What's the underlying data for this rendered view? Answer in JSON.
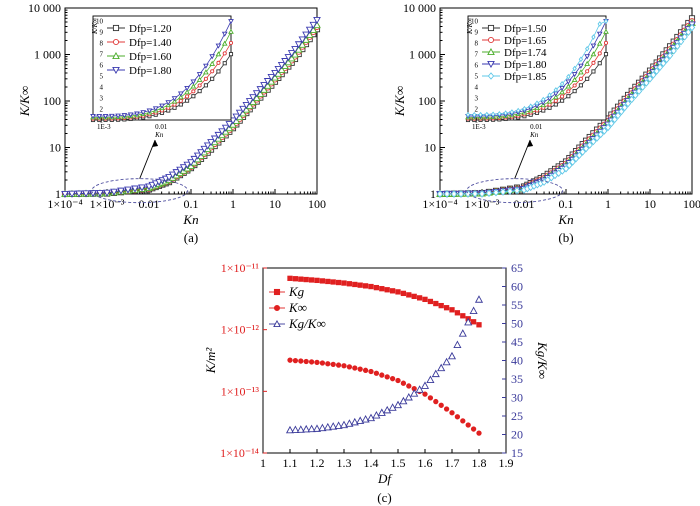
{
  "chart_data": [
    {
      "type": "line",
      "panel_label": "(a)",
      "xlabel": "Kn",
      "ylabel": "K/K∞",
      "xscale": "log",
      "yscale": "log",
      "xlim": [
        0.0001,
        100
      ],
      "ylim": [
        1,
        10000
      ],
      "xticks": [
        "1×10⁻⁴",
        "1×10⁻³",
        "0.01",
        "0.1",
        "1",
        "10",
        "100"
      ],
      "yticks": [
        "1",
        "10",
        "100",
        "1 000",
        "10 000"
      ],
      "x": [
        0.0001,
        0.001,
        0.01,
        0.03,
        0.1,
        0.3,
        1,
        3,
        10,
        30,
        100
      ],
      "series": [
        {
          "name": "Dfp=1.20",
          "color": "#333333",
          "marker": "square",
          "values": [
            1.0,
            1.02,
            1.25,
            1.8,
            3.6,
            9,
            26,
            80,
            260,
            800,
            3500
          ]
        },
        {
          "name": "Dfp=1.40",
          "color": "#e03a3a",
          "marker": "circle",
          "values": [
            1.0,
            1.03,
            1.3,
            1.9,
            3.8,
            10,
            28,
            88,
            290,
            900,
            3900
          ]
        },
        {
          "name": "Dfp=1.60",
          "color": "#4cae2c",
          "marker": "triangle-up",
          "values": [
            1.0,
            1.04,
            1.35,
            2.0,
            4.0,
            11,
            31,
            95,
            320,
            1000,
            4300
          ]
        },
        {
          "name": "Dfp=1.80",
          "color": "#3a3ab0",
          "marker": "triangle-down",
          "values": [
            1.0,
            1.06,
            1.45,
            2.3,
            4.8,
            13,
            38,
            120,
            400,
            1300,
            5500
          ]
        }
      ],
      "inset": {
        "xlabel": "Kn",
        "ylabel": "K/K∞",
        "xticks": [
          "1E-3",
          "0.01"
        ],
        "yticks": [
          "1",
          "2",
          "3",
          "4",
          "5",
          "6",
          "7",
          "8",
          "9",
          "10"
        ]
      }
    },
    {
      "type": "line",
      "panel_label": "(b)",
      "xlabel": "Kn",
      "ylabel": "K/K∞",
      "xscale": "log",
      "yscale": "log",
      "xlim": [
        0.0001,
        100
      ],
      "ylim": [
        1,
        10000
      ],
      "xticks": [
        "1×10⁻⁴",
        "1×10⁻³",
        "0.01",
        "0.1",
        "1",
        "10",
        "100"
      ],
      "yticks": [
        "1",
        "10",
        "100",
        "1 000",
        "10 000"
      ],
      "x": [
        0.0001,
        0.001,
        0.01,
        0.03,
        0.1,
        0.3,
        1,
        3,
        10,
        30,
        100
      ],
      "series": [
        {
          "name": "Dfp=1.50",
          "color": "#333333",
          "marker": "square",
          "values": [
            1.0,
            1.05,
            1.45,
            2.4,
            5.0,
            14,
            42,
            135,
            450,
            1500,
            6000
          ]
        },
        {
          "name": "Dfp=1.65",
          "color": "#e03a3a",
          "marker": "circle",
          "values": [
            1.0,
            1.04,
            1.38,
            2.2,
            4.5,
            12.5,
            37,
            120,
            400,
            1300,
            5200
          ]
        },
        {
          "name": "Dfp=1.74",
          "color": "#4cae2c",
          "marker": "triangle-up",
          "values": [
            1.0,
            1.03,
            1.33,
            2.05,
            4.2,
            11.5,
            34,
            110,
            370,
            1200,
            4800
          ]
        },
        {
          "name": "Dfp=1.80",
          "color": "#3a3ab0",
          "marker": "triangle-down",
          "values": [
            1.0,
            1.02,
            1.28,
            1.95,
            3.9,
            10.5,
            31,
            100,
            340,
            1100,
            4400
          ]
        },
        {
          "name": "Dfp=1.85",
          "color": "#5fc8e8",
          "marker": "diamond",
          "values": [
            1.0,
            1.01,
            1.22,
            1.8,
            3.5,
            9.5,
            27,
            88,
            300,
            950,
            3800
          ]
        }
      ],
      "inset": {
        "xlabel": "Kn",
        "ylabel": "K/K∞",
        "xticks": [
          "1E-3",
          "0.01"
        ],
        "yticks": [
          "1",
          "2",
          "3",
          "4",
          "5",
          "6",
          "7",
          "8",
          "9",
          "10"
        ]
      }
    },
    {
      "type": "scatter",
      "panel_label": "(c)",
      "xlabel": "Df",
      "ylabel_left": "K/m²",
      "ylabel_right": "Kg/K∞",
      "xlim": [
        1.0,
        1.9
      ],
      "xticks": [
        "1",
        "1.1",
        "1.2",
        "1.3",
        "1.4",
        "1.5",
        "1.6",
        "1.7",
        "1.8",
        "1.9"
      ],
      "ylim_left": [
        1e-14,
        1e-11
      ],
      "yticks_left": [
        "1×10⁻¹⁴",
        "1×10⁻¹³",
        "1×10⁻¹²",
        "1×10⁻¹¹"
      ],
      "ylim_right": [
        15,
        65
      ],
      "yticks_right": [
        "15",
        "20",
        "25",
        "30",
        "35",
        "40",
        "45",
        "50",
        "55",
        "60",
        "65"
      ],
      "x": [
        1.1,
        1.2,
        1.3,
        1.4,
        1.5,
        1.6,
        1.7,
        1.8
      ],
      "series": [
        {
          "name": "Kg",
          "color": "#e02020",
          "marker": "square",
          "axis": "left",
          "values": [
            6.8e-12,
            6.3e-12,
            5.7e-12,
            5e-12,
            4.1e-12,
            3.1e-12,
            2.1e-12,
            1.2e-12
          ]
        },
        {
          "name": "K∞",
          "color": "#e02020",
          "marker": "circle",
          "axis": "left",
          "values": [
            3.2e-13,
            2.95e-13,
            2.6e-13,
            2.1e-13,
            1.5e-13,
            9e-14,
            4.5e-14,
            2.1e-14
          ]
        },
        {
          "name": "Kg/K∞",
          "color": "#3a3a9a",
          "marker": "triangle-up",
          "axis": "right",
          "values": [
            21.2,
            21.6,
            22.6,
            24.5,
            28.0,
            33.2,
            41.2,
            56.5
          ]
        }
      ]
    }
  ]
}
